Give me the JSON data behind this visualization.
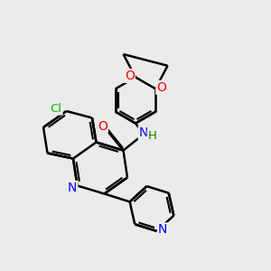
{
  "bg_color": "#ebebeb",
  "bond_color": "#000000",
  "N_color": "#0000ff",
  "O_color": "#ff0000",
  "Cl_color": "#00bb00",
  "H_color": "#008800",
  "line_width": 1.8,
  "figsize": [
    3.0,
    3.0
  ],
  "dpi": 100,
  "xlim": [
    0,
    10
  ],
  "ylim": [
    0,
    10
  ]
}
